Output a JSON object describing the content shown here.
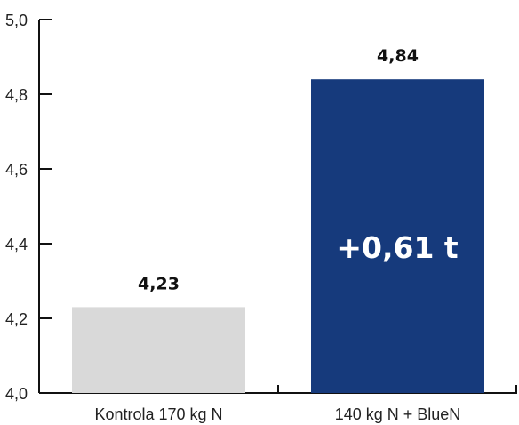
{
  "chart_data": {
    "type": "bar",
    "categories": [
      "Kontrola 170 kg N",
      "140 kg N + BlueN"
    ],
    "values": [
      4.23,
      4.84
    ],
    "value_labels": [
      "4,23",
      "4,84"
    ],
    "ylim": [
      4.0,
      5.0
    ],
    "yticks": [
      4.0,
      4.2,
      4.4,
      4.6,
      4.8,
      5.0
    ],
    "ytick_labels": [
      "4,0",
      "4,2",
      "4,4",
      "4,6",
      "4,8",
      "5,0"
    ],
    "colors": [
      "#d9d9d9",
      "#163a7c"
    ],
    "annotation": {
      "text": "+0,61 t",
      "bar_index": 1
    },
    "grid": false,
    "legend": "none",
    "title": "",
    "xlabel": "",
    "ylabel": ""
  }
}
